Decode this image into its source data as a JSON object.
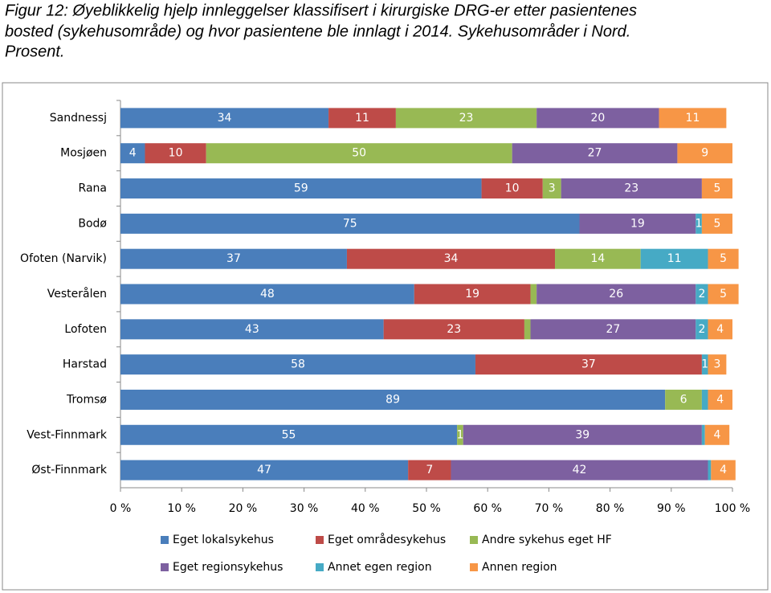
{
  "chart_data": {
    "type": "stacked-barh",
    "title_lines": [
      "Figur 12: Øyeblikkelig hjelp innleggelser klassifisert i kirurgiske DRG-er etter pasientenes",
      "bosted (sykehusområde) og hvor pasientene ble innlagt i 2014. Sykehusområder i Nord.",
      "Prosent."
    ],
    "categories": [
      "Sandnessj",
      "Mosjøen",
      "Rana",
      "Bodø",
      "Ofoten (Narvik)",
      "Vesterålen",
      "Lofoten",
      "Harstad",
      "Tromsø",
      "Vest-Finnmark",
      "Øst-Finnmark"
    ],
    "series": [
      {
        "name": "Eget lokalsykehus",
        "color": "#4a7ebb",
        "values": [
          34,
          4,
          59,
          75,
          37,
          48,
          43,
          58,
          89,
          55,
          47
        ],
        "value_labels": [
          "34",
          "4",
          "59",
          "75",
          "37",
          "48",
          "43",
          "58",
          "89",
          "55",
          "47"
        ]
      },
      {
        "name": "Eget områdesykehus",
        "color": "#be4b48",
        "values": [
          11,
          10,
          10,
          0,
          34,
          19,
          23,
          37,
          0,
          0,
          7
        ],
        "value_labels": [
          "11",
          "10",
          "10",
          null,
          "34",
          "19",
          "23",
          "37",
          null,
          null,
          "7"
        ]
      },
      {
        "name": "Andre sykehus eget HF",
        "color": "#98b954",
        "values": [
          23,
          50,
          3,
          0,
          14,
          1,
          1,
          0,
          6,
          1,
          0
        ],
        "value_labels": [
          "23",
          "50",
          "3",
          null,
          "14",
          null,
          null,
          null,
          "6",
          "1",
          null
        ]
      },
      {
        "name": "Eget regionsykehus",
        "color": "#7d60a0",
        "values": [
          20,
          27,
          23,
          19,
          0,
          26,
          27,
          0,
          0,
          39,
          42
        ],
        "value_labels": [
          "20",
          "27",
          "23",
          "19",
          null,
          "26",
          "27",
          null,
          null,
          "39",
          "42"
        ]
      },
      {
        "name": "Annet egen region",
        "color": "#46aac5",
        "values": [
          0,
          0,
          0,
          1,
          11,
          2,
          2,
          1,
          1,
          0.5,
          0.5
        ],
        "value_labels": [
          null,
          null,
          null,
          "1",
          "11",
          "2",
          "2",
          "1",
          null,
          null,
          null
        ]
      },
      {
        "name": "Annen region",
        "color": "#f79646",
        "values": [
          11,
          9,
          5,
          5,
          5,
          5,
          4,
          3,
          4,
          4,
          4
        ],
        "value_labels": [
          "11",
          "9",
          "5",
          "5",
          "5",
          "5",
          "4",
          "3",
          "4",
          "4",
          "4"
        ]
      }
    ],
    "xlim": [
      0,
      100
    ],
    "xticks": [
      {
        "value": 0,
        "label": "0 %"
      },
      {
        "value": 10,
        "label": "10 %"
      },
      {
        "value": 20,
        "label": "20 %"
      },
      {
        "value": 30,
        "label": "30 %"
      },
      {
        "value": 40,
        "label": "40 %"
      },
      {
        "value": 50,
        "label": "50 %"
      },
      {
        "value": 60,
        "label": "60 %"
      },
      {
        "value": 70,
        "label": "70 %"
      },
      {
        "value": 80,
        "label": "80 %"
      },
      {
        "value": 90,
        "label": "90 %"
      },
      {
        "value": 100,
        "label": "100 %"
      }
    ]
  }
}
